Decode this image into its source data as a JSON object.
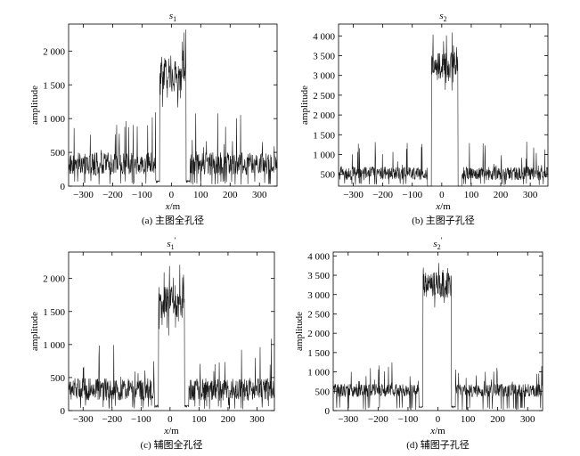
{
  "chart_data": [
    {
      "type": "line",
      "panel": "a",
      "title": "s",
      "title_sub": "1",
      "title_sup": "",
      "caption": "(a) 主图全孔径",
      "xlabel_var": "x",
      "xlabel_unit": "/m",
      "ylabel": "amplitude",
      "xlim": [
        -350,
        360
      ],
      "ylim": [
        0,
        2400
      ],
      "xticks": [
        -300,
        -200,
        -100,
        0,
        100,
        200,
        300
      ],
      "xtick_labels": [
        "−300",
        "−200",
        "−100",
        "0",
        "100",
        "200",
        "300"
      ],
      "yticks": [
        0,
        500,
        1000,
        1500,
        2000
      ],
      "ytick_labels": [
        "0",
        "500",
        "1 000",
        "1 500",
        "2 000"
      ],
      "signal": {
        "x_start": -350,
        "x_end": 360,
        "edges": [
          -40,
          50
        ],
        "background_mean": 330,
        "background_spread": 170,
        "plateau_mean": 1650,
        "plateau_spread": 250,
        "peak_max": 2350,
        "spike_max": 1100
      }
    },
    {
      "type": "line",
      "panel": "b",
      "title": "s",
      "title_sub": "2",
      "title_sup": "",
      "caption": "(b) 主图子孔径",
      "xlabel_var": "x",
      "xlabel_unit": "/m",
      "ylabel": "amplitude",
      "xlim": [
        -350,
        360
      ],
      "ylim": [
        200,
        4300
      ],
      "xticks": [
        -300,
        -200,
        -100,
        0,
        100,
        200,
        300
      ],
      "xtick_labels": [
        "−300",
        "−200",
        "−100",
        "0",
        "100",
        "200",
        "300"
      ],
      "yticks": [
        500,
        1000,
        1500,
        2000,
        2500,
        3000,
        3500,
        4000
      ],
      "ytick_labels": [
        "500",
        "1 000",
        "1 500",
        "2 000",
        "2 500",
        "3 000",
        "3 500",
        "4 000"
      ],
      "signal": {
        "x_start": -350,
        "x_end": 360,
        "edges": [
          -35,
          55
        ],
        "background_mean": 520,
        "background_spread": 170,
        "plateau_mean": 3250,
        "plateau_spread": 350,
        "peak_max": 4250,
        "spike_max": 1350
      }
    },
    {
      "type": "line",
      "panel": "c",
      "title": "s",
      "title_sub": "1",
      "title_sup": "′",
      "caption": "(c) 辅图全孔径",
      "xlabel_var": "x",
      "xlabel_unit": "/m",
      "ylabel": "amplitude",
      "xlim": [
        -350,
        360
      ],
      "ylim": [
        0,
        2400
      ],
      "xticks": [
        -300,
        -200,
        -100,
        0,
        100,
        200,
        300
      ],
      "xtick_labels": [
        "−300",
        "−200",
        "−100",
        "0",
        "100",
        "200",
        "300"
      ],
      "yticks": [
        0,
        500,
        1000,
        1500,
        2000
      ],
      "ytick_labels": [
        "0",
        "500",
        "1 000",
        "1 500",
        "2 000"
      ],
      "signal": {
        "x_start": -350,
        "x_end": 360,
        "edges": [
          -40,
          50
        ],
        "background_mean": 320,
        "background_spread": 170,
        "plateau_mean": 1650,
        "plateau_spread": 250,
        "peak_max": 2350,
        "spike_max": 1100
      }
    },
    {
      "type": "line",
      "panel": "d",
      "title": "s",
      "title_sub": "2",
      "title_sup": "′",
      "caption": "(d) 辅图子孔径",
      "xlabel_var": "x",
      "xlabel_unit": "/m",
      "ylabel": "amplitude",
      "xlim": [
        -350,
        350
      ],
      "ylim": [
        0,
        4100
      ],
      "xticks": [
        -300,
        -200,
        -100,
        0,
        100,
        200,
        300
      ],
      "xtick_labels": [
        "−300",
        "−200",
        "−100",
        "0",
        "100",
        "200",
        "300"
      ],
      "yticks": [
        0,
        500,
        1000,
        1500,
        2000,
        2500,
        3000,
        3500,
        4000
      ],
      "ytick_labels": [
        "0",
        "500",
        "1 000",
        "1 500",
        "2 000",
        "2 500",
        "3 000",
        "3 500",
        "4 000"
      ],
      "signal": {
        "x_start": -350,
        "x_end": 350,
        "edges": [
          -50,
          45
        ],
        "background_mean": 520,
        "background_spread": 170,
        "plateau_mean": 3250,
        "plateau_spread": 330,
        "peak_max": 3950,
        "spike_max": 1250
      }
    }
  ],
  "colors": {
    "line": "#1a1a1a",
    "axis": "#000000",
    "background": "#ffffff"
  }
}
